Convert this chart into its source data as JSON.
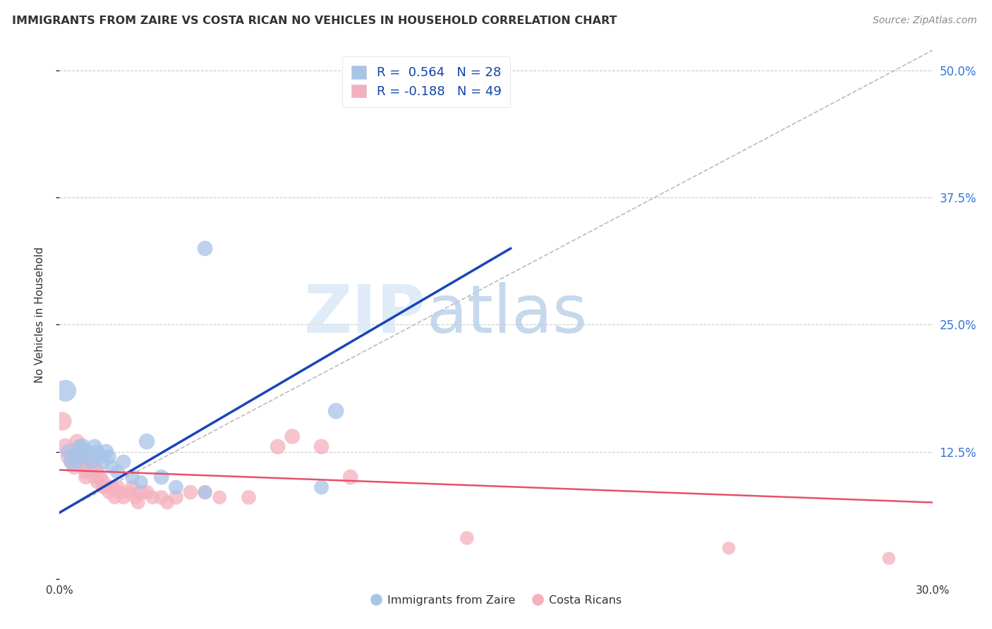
{
  "title": "IMMIGRANTS FROM ZAIRE VS COSTA RICAN NO VEHICLES IN HOUSEHOLD CORRELATION CHART",
  "source": "Source: ZipAtlas.com",
  "ylabel": "No Vehicles in Household",
  "y_ticks": [
    0.0,
    0.125,
    0.25,
    0.375,
    0.5
  ],
  "y_tick_labels": [
    "",
    "12.5%",
    "25.0%",
    "37.5%",
    "50.0%"
  ],
  "x_min": 0.0,
  "x_max": 0.3,
  "y_min": 0.0,
  "y_max": 0.52,
  "legend_label_blue": "R =  0.564   N = 28",
  "legend_label_pink": "R = -0.188   N = 49",
  "legend_label_blue_series": "Immigrants from Zaire",
  "legend_label_pink_series": "Costa Ricans",
  "watermark_zip": "ZIP",
  "watermark_atlas": "atlas",
  "blue_color": "#a8c4e8",
  "pink_color": "#f5b0be",
  "blue_line_color": "#1a44bb",
  "pink_line_color": "#e8506a",
  "background_color": "#ffffff",
  "blue_line_x": [
    0.0,
    0.155
  ],
  "blue_line_y": [
    0.065,
    0.325
  ],
  "pink_line_x": [
    0.0,
    0.3
  ],
  "pink_line_y": [
    0.107,
    0.075
  ],
  "dashed_line_x": [
    0.0,
    0.3
  ],
  "dashed_line_y": [
    0.065,
    0.52
  ],
  "blue_dots": [
    [
      0.002,
      0.185
    ],
    [
      0.003,
      0.125
    ],
    [
      0.004,
      0.115
    ],
    [
      0.005,
      0.12
    ],
    [
      0.006,
      0.115
    ],
    [
      0.007,
      0.13
    ],
    [
      0.008,
      0.13
    ],
    [
      0.009,
      0.125
    ],
    [
      0.01,
      0.12
    ],
    [
      0.011,
      0.115
    ],
    [
      0.012,
      0.13
    ],
    [
      0.013,
      0.125
    ],
    [
      0.014,
      0.12
    ],
    [
      0.015,
      0.115
    ],
    [
      0.016,
      0.125
    ],
    [
      0.017,
      0.12
    ],
    [
      0.018,
      0.11
    ],
    [
      0.02,
      0.105
    ],
    [
      0.022,
      0.115
    ],
    [
      0.025,
      0.1
    ],
    [
      0.028,
      0.095
    ],
    [
      0.03,
      0.135
    ],
    [
      0.035,
      0.1
    ],
    [
      0.04,
      0.09
    ],
    [
      0.05,
      0.085
    ],
    [
      0.09,
      0.09
    ],
    [
      0.095,
      0.165
    ],
    [
      0.05,
      0.325
    ]
  ],
  "pink_dots": [
    [
      0.001,
      0.155
    ],
    [
      0.002,
      0.13
    ],
    [
      0.003,
      0.12
    ],
    [
      0.004,
      0.115
    ],
    [
      0.005,
      0.11
    ],
    [
      0.006,
      0.135
    ],
    [
      0.007,
      0.125
    ],
    [
      0.007,
      0.115
    ],
    [
      0.008,
      0.12
    ],
    [
      0.008,
      0.11
    ],
    [
      0.009,
      0.105
    ],
    [
      0.009,
      0.1
    ],
    [
      0.01,
      0.115
    ],
    [
      0.011,
      0.105
    ],
    [
      0.012,
      0.11
    ],
    [
      0.012,
      0.1
    ],
    [
      0.013,
      0.105
    ],
    [
      0.013,
      0.095
    ],
    [
      0.014,
      0.1
    ],
    [
      0.015,
      0.095
    ],
    [
      0.015,
      0.09
    ],
    [
      0.016,
      0.09
    ],
    [
      0.017,
      0.085
    ],
    [
      0.018,
      0.09
    ],
    [
      0.019,
      0.08
    ],
    [
      0.02,
      0.09
    ],
    [
      0.021,
      0.085
    ],
    [
      0.022,
      0.08
    ],
    [
      0.024,
      0.085
    ],
    [
      0.025,
      0.09
    ],
    [
      0.026,
      0.08
    ],
    [
      0.027,
      0.075
    ],
    [
      0.028,
      0.085
    ],
    [
      0.03,
      0.085
    ],
    [
      0.032,
      0.08
    ],
    [
      0.035,
      0.08
    ],
    [
      0.037,
      0.075
    ],
    [
      0.04,
      0.08
    ],
    [
      0.045,
      0.085
    ],
    [
      0.05,
      0.085
    ],
    [
      0.055,
      0.08
    ],
    [
      0.065,
      0.08
    ],
    [
      0.075,
      0.13
    ],
    [
      0.08,
      0.14
    ],
    [
      0.09,
      0.13
    ],
    [
      0.1,
      0.1
    ],
    [
      0.14,
      0.04
    ],
    [
      0.23,
      0.03
    ],
    [
      0.285,
      0.02
    ]
  ],
  "blue_dot_sizes": [
    110,
    55,
    50,
    55,
    50,
    55,
    60,
    55,
    55,
    50,
    55,
    50,
    50,
    50,
    55,
    50,
    50,
    50,
    50,
    50,
    45,
    60,
    55,
    50,
    45,
    50,
    60,
    55
  ],
  "pink_dot_sizes": [
    80,
    65,
    55,
    55,
    55,
    55,
    50,
    55,
    50,
    55,
    50,
    50,
    50,
    50,
    55,
    50,
    50,
    45,
    50,
    50,
    45,
    45,
    45,
    50,
    45,
    50,
    45,
    45,
    45,
    50,
    45,
    45,
    50,
    50,
    45,
    50,
    45,
    50,
    50,
    50,
    45,
    50,
    55,
    55,
    55,
    55,
    45,
    40,
    40
  ]
}
